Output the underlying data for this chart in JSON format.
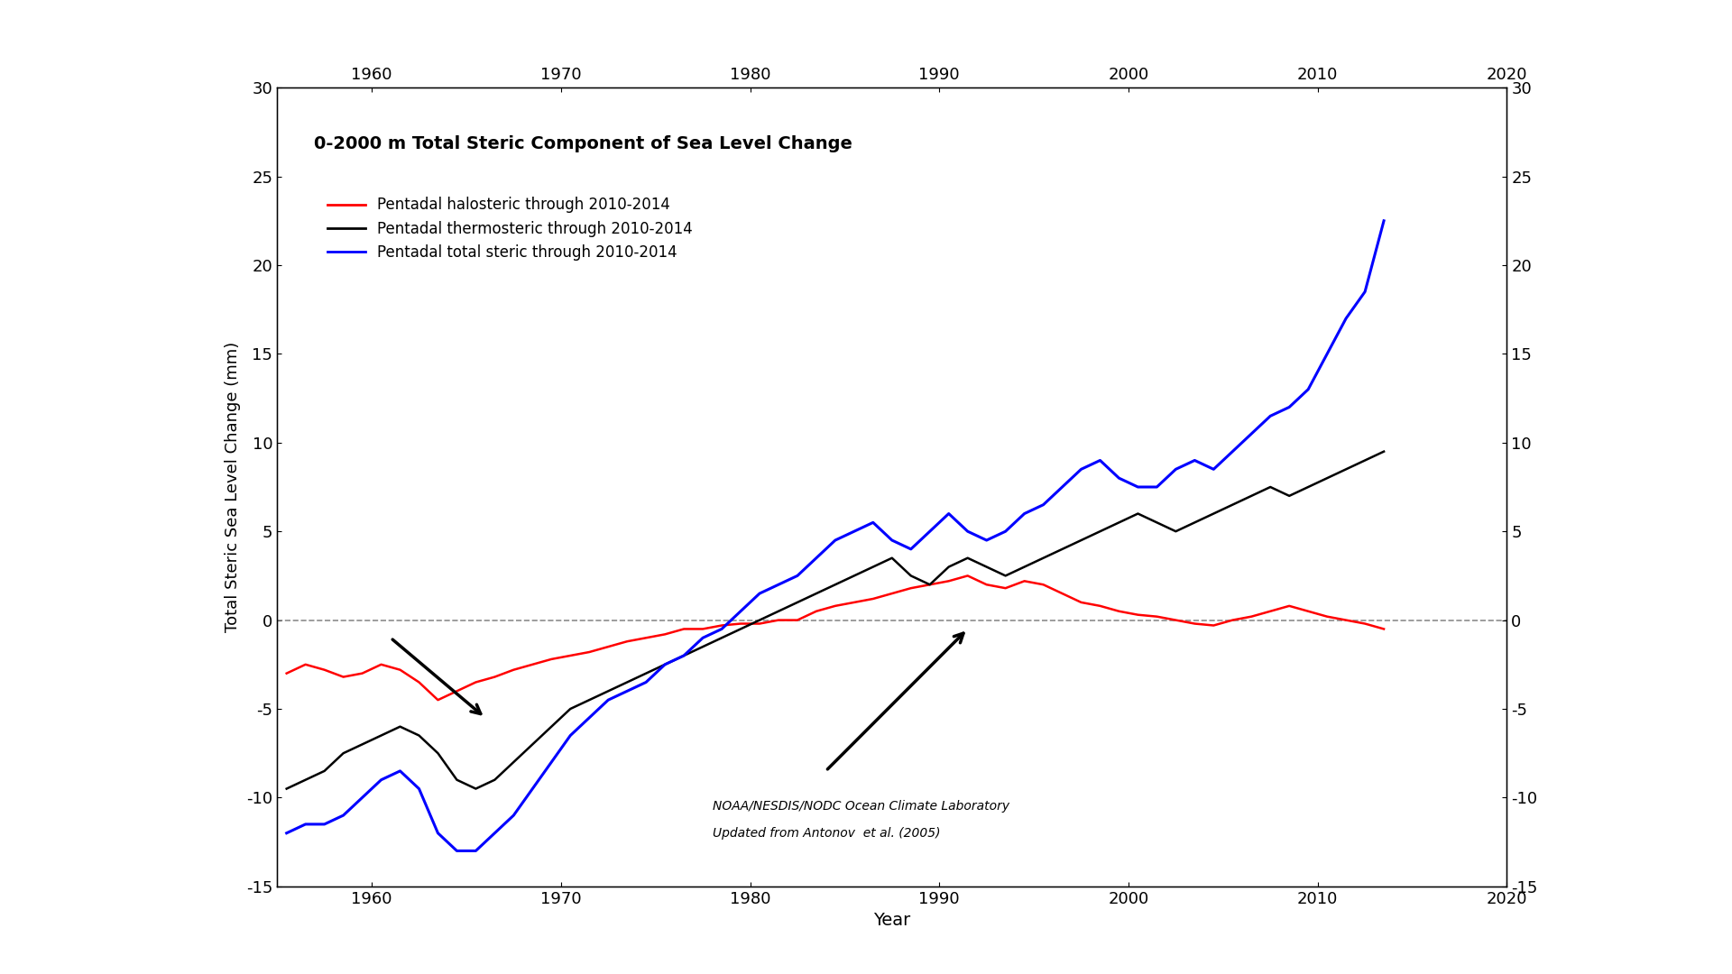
{
  "title": "0-2000 m Total Steric Component of Sea Level Change",
  "xlabel": "Year",
  "ylabel": "Total Steric Sea Level Change (mm)",
  "xlim": [
    1955,
    2020
  ],
  "ylim": [
    -15,
    30
  ],
  "yticks": [
    -15,
    -10,
    -5,
    0,
    5,
    10,
    15,
    20,
    25,
    30
  ],
  "xticks": [
    1960,
    1970,
    1980,
    1990,
    2000,
    2010,
    2020
  ],
  "legend_labels": [
    "Pentadal halosteric through 2010-2014",
    "Pentadal thermosteric through 2010-2014",
    "Pentadal total steric through 2010-2014"
  ],
  "line_colors": [
    "#ff0000",
    "#000000",
    "#0000ff"
  ],
  "annotation_text1": "NOAA/NESDIS/NODC Ocean Climate Laboratory",
  "annotation_text2": "Updated from Antonov  et al. (2005)",
  "outer_bg_color": "#ffffff",
  "plot_bg_color": "#ffffff",
  "bottom_bar_color": "#6aaa2e",
  "years": [
    1955.5,
    1956.5,
    1957.5,
    1958.5,
    1959.5,
    1960.5,
    1961.5,
    1962.5,
    1963.5,
    1964.5,
    1965.5,
    1966.5,
    1967.5,
    1968.5,
    1969.5,
    1970.5,
    1971.5,
    1972.5,
    1973.5,
    1974.5,
    1975.5,
    1976.5,
    1977.5,
    1978.5,
    1979.5,
    1980.5,
    1981.5,
    1982.5,
    1983.5,
    1984.5,
    1985.5,
    1986.5,
    1987.5,
    1988.5,
    1989.5,
    1990.5,
    1991.5,
    1992.5,
    1993.5,
    1994.5,
    1995.5,
    1996.5,
    1997.5,
    1998.5,
    1999.5,
    2000.5,
    2001.5,
    2002.5,
    2003.5,
    2004.5,
    2005.5,
    2006.5,
    2007.5,
    2008.5,
    2009.5,
    2010.5,
    2011.5,
    2012.5,
    2013.5
  ],
  "halosteric": [
    -3.0,
    -2.5,
    -2.8,
    -3.2,
    -3.0,
    -2.5,
    -2.8,
    -3.5,
    -4.5,
    -4.0,
    -3.5,
    -3.2,
    -2.8,
    -2.5,
    -2.2,
    -2.0,
    -1.8,
    -1.5,
    -1.2,
    -1.0,
    -0.8,
    -0.5,
    -0.5,
    -0.3,
    -0.2,
    -0.2,
    0.0,
    0.0,
    0.5,
    0.8,
    1.0,
    1.2,
    1.5,
    1.8,
    2.0,
    2.2,
    2.5,
    2.0,
    1.8,
    2.2,
    2.0,
    1.5,
    1.0,
    0.8,
    0.5,
    0.3,
    0.2,
    0.0,
    -0.2,
    -0.3,
    0.0,
    0.2,
    0.5,
    0.8,
    0.5,
    0.2,
    0.0,
    -0.2,
    -0.5
  ],
  "thermosteric": [
    -9.5,
    -9.0,
    -8.5,
    -7.5,
    -7.0,
    -6.5,
    -6.0,
    -6.5,
    -7.5,
    -9.0,
    -9.5,
    -9.0,
    -8.0,
    -7.0,
    -6.0,
    -5.0,
    -4.5,
    -4.0,
    -3.5,
    -3.0,
    -2.5,
    -2.0,
    -1.5,
    -1.0,
    -0.5,
    0.0,
    0.5,
    1.0,
    1.5,
    2.0,
    2.5,
    3.0,
    3.5,
    2.5,
    2.0,
    3.0,
    3.5,
    3.0,
    2.5,
    3.0,
    3.5,
    4.0,
    4.5,
    5.0,
    5.5,
    6.0,
    5.5,
    5.0,
    5.5,
    6.0,
    6.5,
    7.0,
    7.5,
    7.0,
    7.5,
    8.0,
    8.5,
    9.0,
    9.5
  ],
  "total_steric": [
    -12.0,
    -11.5,
    -11.5,
    -11.0,
    -10.0,
    -9.0,
    -8.5,
    -9.5,
    -12.0,
    -13.0,
    -13.0,
    -12.0,
    -11.0,
    -9.5,
    -8.0,
    -6.5,
    -5.5,
    -4.5,
    -4.0,
    -3.5,
    -2.5,
    -2.0,
    -1.0,
    -0.5,
    0.5,
    1.5,
    2.0,
    2.5,
    3.5,
    4.5,
    5.0,
    5.5,
    4.5,
    4.0,
    5.0,
    6.0,
    5.0,
    4.5,
    5.0,
    6.0,
    6.5,
    7.5,
    8.5,
    9.0,
    8.0,
    7.5,
    7.5,
    8.5,
    9.0,
    8.5,
    9.5,
    10.5,
    11.5,
    12.0,
    13.0,
    15.0,
    17.0,
    18.5,
    22.5
  ]
}
